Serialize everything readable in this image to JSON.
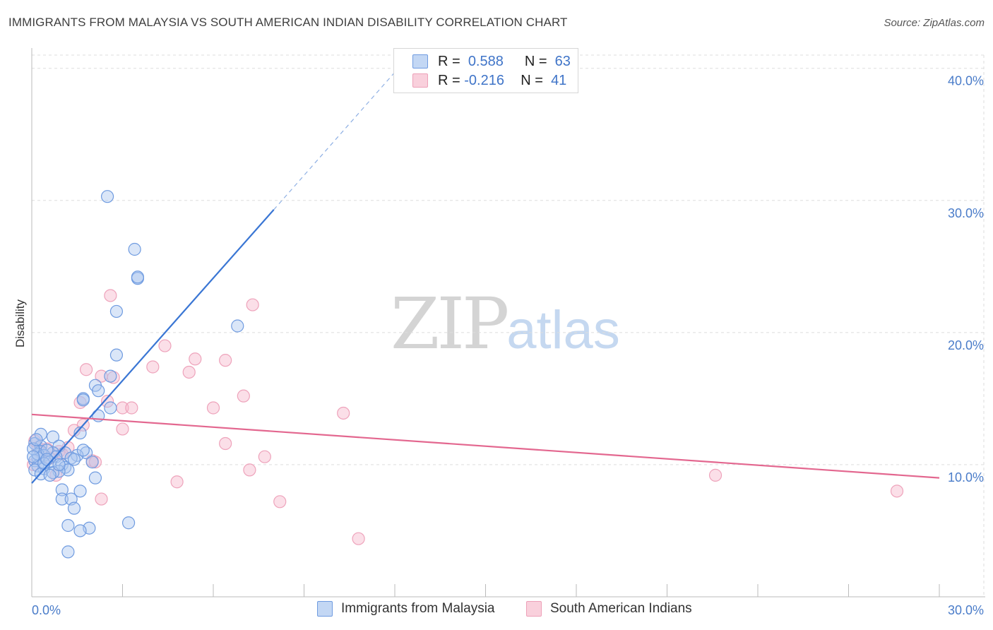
{
  "header": {
    "title": "IMMIGRANTS FROM MALAYSIA VS SOUTH AMERICAN INDIAN DISABILITY CORRELATION CHART",
    "source": "Source: ZipAtlas.com"
  },
  "watermark": {
    "zip": "ZIP",
    "atlas": "atlas"
  },
  "legend_top": {
    "rows": [
      {
        "r_label": "R =",
        "r_value": "0.588",
        "n_label": "N =",
        "n_value": "63"
      },
      {
        "r_label": "R =",
        "r_value": "-0.216",
        "n_label": "N =",
        "n_value": "41"
      }
    ]
  },
  "colors": {
    "blue": "#3a76d4",
    "blue_fill": "#aec8f0",
    "pink": "#e3678f",
    "pink_fill": "#f6b8cb",
    "grid": "#dddddd",
    "tick_label": "#4a7cc9"
  },
  "chart_data": {
    "type": "scatter",
    "title": "IMMIGRANTS FROM MALAYSIA VS SOUTH AMERICAN INDIAN DISABILITY CORRELATION CHART",
    "xlabel": "",
    "ylabel": "Disability",
    "xlim": [
      0,
      30
    ],
    "ylim": [
      0,
      41
    ],
    "x_tick_labels": [
      "0.0%",
      "30.0%"
    ],
    "y_ticks": [
      10,
      20,
      30,
      40
    ],
    "y_tick_labels": [
      "10.0%",
      "20.0%",
      "30.0%",
      "40.0%"
    ],
    "grid": true,
    "series": [
      {
        "name": "Immigrants from Malaysia",
        "R": 0.588,
        "N": 63,
        "trend": {
          "x_start": 0.0,
          "y_start": 8.6,
          "x_end": 8.0,
          "y_end": 29.3,
          "dashed_to_x": 12.0,
          "dashed_to_y": 39.7
        },
        "points": [
          [
            2.5,
            30.3
          ],
          [
            3.4,
            26.3
          ],
          [
            3.5,
            24.1
          ],
          [
            3.5,
            24.2
          ],
          [
            2.8,
            21.6
          ],
          [
            6.8,
            20.5
          ],
          [
            2.8,
            18.3
          ],
          [
            2.6,
            16.7
          ],
          [
            2.1,
            16.0
          ],
          [
            2.2,
            15.6
          ],
          [
            1.7,
            15.0
          ],
          [
            1.7,
            14.9
          ],
          [
            2.6,
            14.3
          ],
          [
            2.2,
            13.7
          ],
          [
            1.6,
            12.4
          ],
          [
            0.7,
            12.1
          ],
          [
            0.1,
            11.6
          ],
          [
            0.3,
            11.4
          ],
          [
            0.9,
            11.4
          ],
          [
            0.3,
            11.0
          ],
          [
            0.7,
            10.9
          ],
          [
            1.1,
            10.9
          ],
          [
            1.8,
            10.9
          ],
          [
            0.4,
            10.7
          ],
          [
            1.5,
            10.7
          ],
          [
            0.8,
            10.6
          ],
          [
            0.2,
            10.5
          ],
          [
            1.3,
            10.5
          ],
          [
            0.1,
            10.3
          ],
          [
            1.4,
            10.4
          ],
          [
            0.6,
            10.2
          ],
          [
            2.0,
            10.2
          ],
          [
            1.0,
            10.0
          ],
          [
            0.2,
            9.9
          ],
          [
            1.1,
            9.8
          ],
          [
            0.4,
            9.7
          ],
          [
            1.2,
            9.6
          ],
          [
            0.9,
            9.5
          ],
          [
            0.7,
            9.4
          ],
          [
            0.1,
            9.6
          ],
          [
            0.3,
            9.3
          ],
          [
            0.6,
            9.2
          ],
          [
            2.1,
            9.0
          ],
          [
            0.2,
            10.8
          ],
          [
            0.5,
            11.1
          ],
          [
            1.6,
            8.0
          ],
          [
            1.0,
            8.1
          ],
          [
            1.0,
            7.4
          ],
          [
            1.3,
            7.4
          ],
          [
            1.4,
            6.7
          ],
          [
            3.2,
            5.6
          ],
          [
            1.2,
            5.4
          ],
          [
            1.9,
            5.2
          ],
          [
            1.6,
            5.0
          ],
          [
            1.2,
            3.4
          ],
          [
            0.05,
            11.2
          ],
          [
            0.4,
            10.1
          ],
          [
            0.9,
            10.0
          ],
          [
            1.7,
            11.1
          ],
          [
            0.3,
            12.3
          ],
          [
            0.5,
            10.4
          ],
          [
            0.05,
            10.6
          ],
          [
            0.15,
            11.9
          ]
        ]
      },
      {
        "name": "South American Indians",
        "R": -0.216,
        "N": 41,
        "trend": {
          "x_start": 0.0,
          "y_start": 13.8,
          "x_end": 30.0,
          "y_end": 9.0
        },
        "points": [
          [
            2.6,
            22.8
          ],
          [
            7.3,
            22.1
          ],
          [
            4.4,
            19.0
          ],
          [
            5.4,
            18.0
          ],
          [
            6.4,
            17.9
          ],
          [
            1.8,
            17.2
          ],
          [
            4.0,
            17.4
          ],
          [
            5.2,
            17.0
          ],
          [
            2.3,
            16.7
          ],
          [
            2.7,
            16.6
          ],
          [
            7.0,
            15.2
          ],
          [
            2.5,
            14.8
          ],
          [
            1.6,
            14.7
          ],
          [
            3.0,
            14.3
          ],
          [
            3.3,
            14.3
          ],
          [
            6.0,
            14.3
          ],
          [
            10.3,
            13.9
          ],
          [
            1.7,
            13.0
          ],
          [
            3.0,
            12.7
          ],
          [
            1.4,
            12.6
          ],
          [
            6.4,
            11.6
          ],
          [
            1.2,
            11.3
          ],
          [
            0.2,
            11.3
          ],
          [
            0.5,
            11.2
          ],
          [
            0.9,
            11.0
          ],
          [
            0.3,
            10.9
          ],
          [
            1.0,
            10.8
          ],
          [
            7.7,
            10.6
          ],
          [
            2.0,
            10.3
          ],
          [
            2.1,
            10.2
          ],
          [
            0.8,
            9.2
          ],
          [
            7.2,
            9.6
          ],
          [
            22.6,
            9.2
          ],
          [
            4.8,
            8.7
          ],
          [
            2.3,
            7.4
          ],
          [
            8.2,
            7.2
          ],
          [
            28.6,
            8.0
          ],
          [
            10.8,
            4.4
          ],
          [
            0.1,
            11.8
          ],
          [
            0.6,
            10.5
          ],
          [
            0.05,
            10.0
          ]
        ]
      }
    ]
  },
  "bottom_legend": {
    "items": [
      {
        "label": "Immigrants from Malaysia"
      },
      {
        "label": "South American Indians"
      }
    ]
  }
}
